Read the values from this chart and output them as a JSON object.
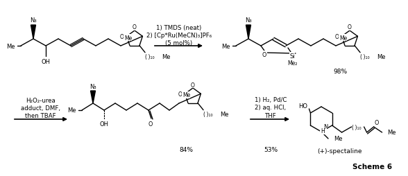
{
  "title": "Scheme 6",
  "background": "#ffffff",
  "fig_width": 5.88,
  "fig_height": 2.55,
  "dpi": 100,
  "top_reagents": [
    "1) TMDS (neat)",
    "2) [Cp*Ru(MeCN)₃]PF₆",
    "(5 mol%)"
  ],
  "top_yield": "98%",
  "bot_left_reagents": [
    "H₂O₂-urea",
    "adduct, DMF,",
    "then TBAF"
  ],
  "bot_mid_reagents": [
    "1) H₂, Pd/C",
    "2) aq. HCl,",
    "THF"
  ],
  "bot_yield1": "84%",
  "bot_yield2": "53%",
  "product_name": "(+)-spectaline",
  "scheme_label": "Scheme 6"
}
